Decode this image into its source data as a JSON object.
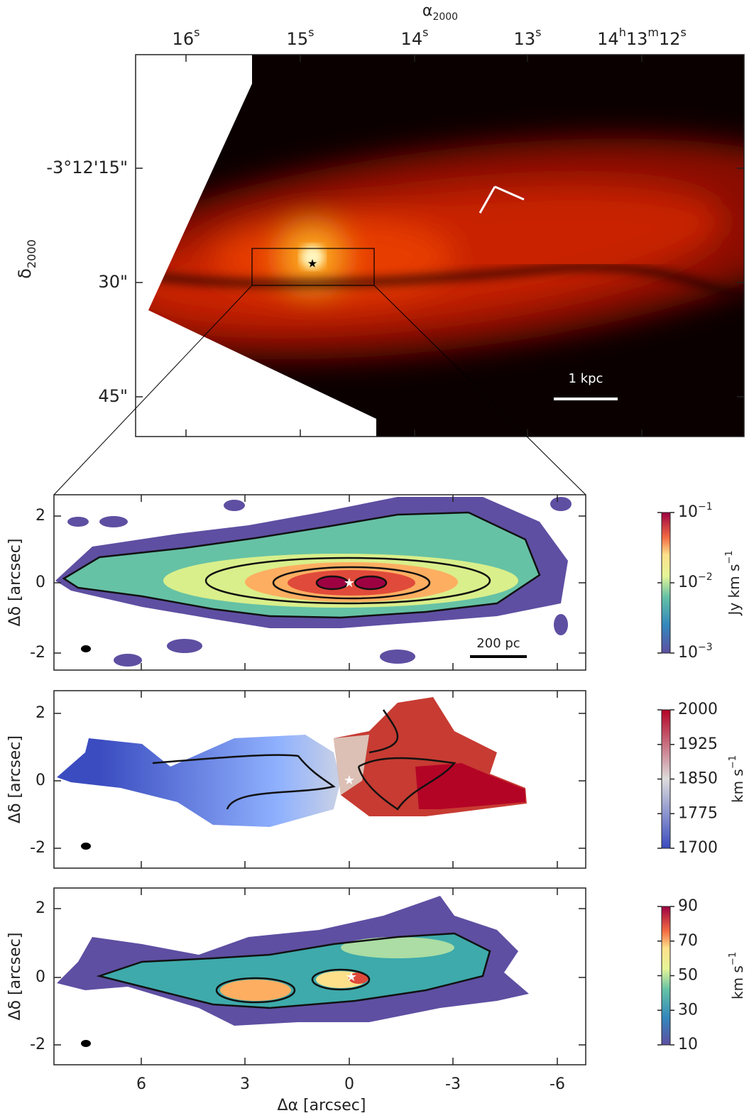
{
  "top_panel": {
    "x_label": [
      "α",
      "2000"
    ],
    "y_label": [
      "δ",
      "2000"
    ],
    "x_ticks": [
      [
        "16",
        "s"
      ],
      [
        "15",
        "s"
      ],
      [
        "14",
        "s"
      ],
      [
        "13",
        "s"
      ],
      [
        "14",
        "h",
        "13",
        "m",
        "12",
        "s"
      ]
    ],
    "y_ticks": [
      "-3°12'15\"",
      "30\"",
      "45\""
    ],
    "scale_bar": "1 kpc"
  },
  "panels": [
    {
      "y_label": "Δδ [arcsec]",
      "y_ticks": [
        2,
        0,
        -2
      ],
      "scale_bar": "200 pc",
      "colorbar": {
        "ticks": [
          [
            "10",
            "−1"
          ],
          [
            "10",
            "−2"
          ],
          [
            "10",
            "−3"
          ]
        ],
        "label": [
          "Jy km s",
          "−1"
        ]
      }
    },
    {
      "y_label": "Δδ [arcsec]",
      "y_ticks": [
        2,
        0,
        -2
      ],
      "colorbar": {
        "ticks": [
          2000,
          1925,
          1850,
          1775,
          1700
        ],
        "label": [
          "km s",
          "−1"
        ]
      }
    },
    {
      "y_label": "Δδ [arcsec]",
      "y_ticks": [
        2,
        0,
        -2
      ],
      "colorbar": {
        "ticks": [
          90,
          70,
          50,
          30,
          10
        ],
        "label": [
          "km s",
          "−1"
        ]
      }
    }
  ],
  "x_ticks": [
    6,
    3,
    0,
    -3,
    -6
  ],
  "x_label": "Δα [arcsec]"
}
